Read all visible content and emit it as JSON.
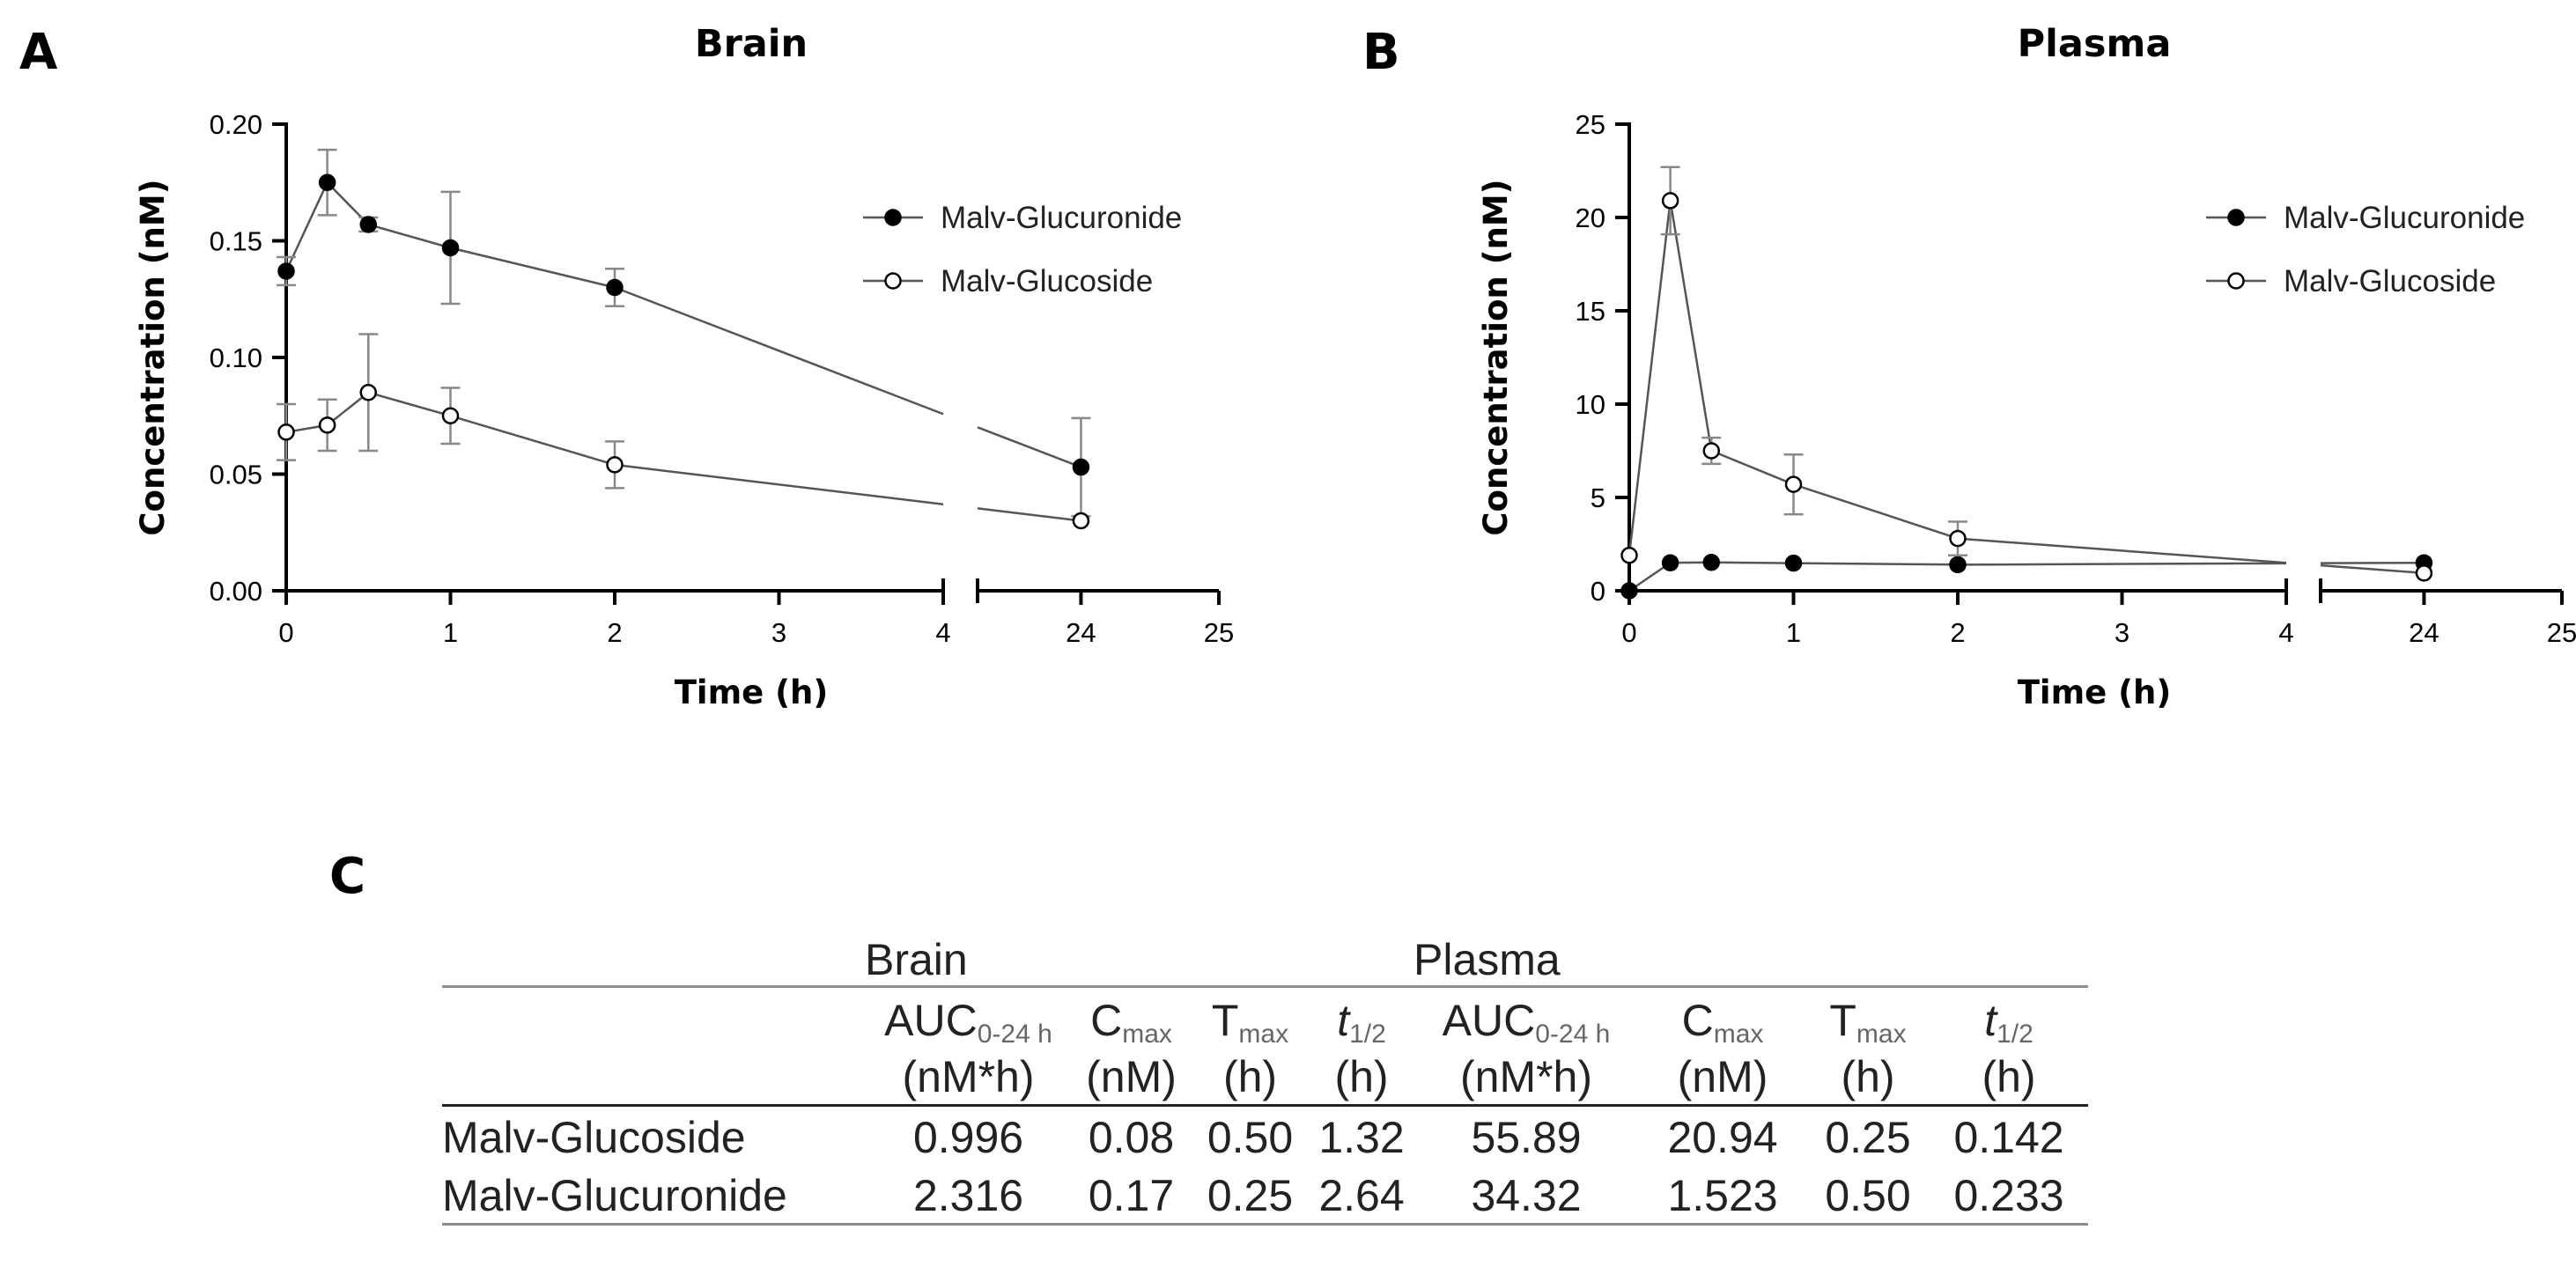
{
  "panels": {
    "a": {
      "letter": "A"
    },
    "b": {
      "letter": "B"
    },
    "c": {
      "letter": "C"
    }
  },
  "chart_data": [
    {
      "type": "line",
      "title": "Brain",
      "xlabel": "Time (h)",
      "ylabel": "Concentration (nM)",
      "ylim": [
        0,
        0.2
      ],
      "yticks": [
        0,
        0.05,
        0.1,
        0.15,
        0.2
      ],
      "ytick_labels": [
        "0.00",
        "0.05",
        "0.10",
        "0.15",
        "0.20"
      ],
      "x_segments": [
        [
          0,
          4
        ],
        [
          24,
          25
        ]
      ],
      "xticks": [
        0,
        1,
        2,
        3,
        4,
        24,
        25
      ],
      "xtick_labels": [
        "0",
        "1",
        "2",
        "3",
        "4",
        "24",
        "25"
      ],
      "legend_position": "top-right",
      "series": [
        {
          "name": "Malv-Glucuronide",
          "marker": "filled",
          "x": [
            0,
            0.25,
            0.5,
            1,
            2,
            24
          ],
          "y": [
            0.137,
            0.175,
            0.157,
            0.147,
            0.13,
            0.053
          ],
          "err": [
            0.006,
            0.014,
            0.003,
            0.024,
            0.008,
            0.021
          ]
        },
        {
          "name": "Malv-Glucoside",
          "marker": "open",
          "x": [
            0,
            0.25,
            0.5,
            1,
            2,
            24
          ],
          "y": [
            0.068,
            0.071,
            0.085,
            0.075,
            0.054,
            0.03
          ],
          "err": [
            0.012,
            0.011,
            0.025,
            0.012,
            0.01,
            0.0
          ]
        }
      ]
    },
    {
      "type": "line",
      "title": "Plasma",
      "xlabel": "Time (h)",
      "ylabel": "Concentration (nM)",
      "ylim": [
        0,
        25
      ],
      "yticks": [
        0,
        5,
        10,
        15,
        20,
        25
      ],
      "ytick_labels": [
        "0",
        "5",
        "10",
        "15",
        "20",
        "25"
      ],
      "x_segments": [
        [
          0,
          4
        ],
        [
          24,
          25
        ]
      ],
      "xticks": [
        0,
        1,
        2,
        3,
        4,
        24,
        25
      ],
      "xtick_labels": [
        "0",
        "1",
        "2",
        "3",
        "4",
        "24",
        "25"
      ],
      "legend_position": "top-right",
      "series": [
        {
          "name": "Malv-Glucuronide",
          "marker": "filled",
          "x": [
            0,
            0.25,
            0.5,
            1,
            2,
            24
          ],
          "y": [
            0.0,
            1.5,
            1.52,
            1.48,
            1.4,
            1.5
          ],
          "err": [
            0,
            0,
            0,
            0,
            0,
            0
          ]
        },
        {
          "name": "Malv-Glucoside",
          "marker": "open",
          "x": [
            0,
            0.25,
            0.5,
            1,
            2,
            24
          ],
          "y": [
            1.9,
            20.9,
            7.5,
            5.7,
            2.8,
            0.95
          ],
          "err": [
            0,
            1.8,
            0.7,
            1.6,
            0.9,
            0
          ]
        }
      ]
    },
    {
      "type": "table",
      "groups": [
        "Brain",
        "Plasma"
      ],
      "columns": [
        {
          "base": "AUC",
          "sub": "0-24 h",
          "italic": false,
          "unit": "(nM*h)"
        },
        {
          "base": "C",
          "sub": "max",
          "italic": false,
          "unit": "(nM)"
        },
        {
          "base": "T",
          "sub": "max",
          "italic": false,
          "unit": "(h)"
        },
        {
          "base": "t",
          "sub": "1/2",
          "italic": true,
          "unit": "(h)"
        },
        {
          "base": "AUC",
          "sub": "0-24 h",
          "italic": false,
          "unit": "(nM*h)"
        },
        {
          "base": "C",
          "sub": "max",
          "italic": false,
          "unit": "(nM)"
        },
        {
          "base": "T",
          "sub": "max",
          "italic": false,
          "unit": "(h)"
        },
        {
          "base": "t",
          "sub": "1/2",
          "italic": true,
          "unit": "(h)"
        }
      ],
      "rows": [
        {
          "label": "Malv-Glucoside",
          "values": [
            "0.996",
            "0.08",
            "0.50",
            "1.32",
            "55.89",
            "20.94",
            "0.25",
            "0.142"
          ]
        },
        {
          "label": "Malv-Glucuronide",
          "values": [
            "2.316",
            "0.17",
            "0.25",
            "2.64",
            "34.32",
            "1.523",
            "0.50",
            "0.233"
          ]
        }
      ]
    }
  ]
}
